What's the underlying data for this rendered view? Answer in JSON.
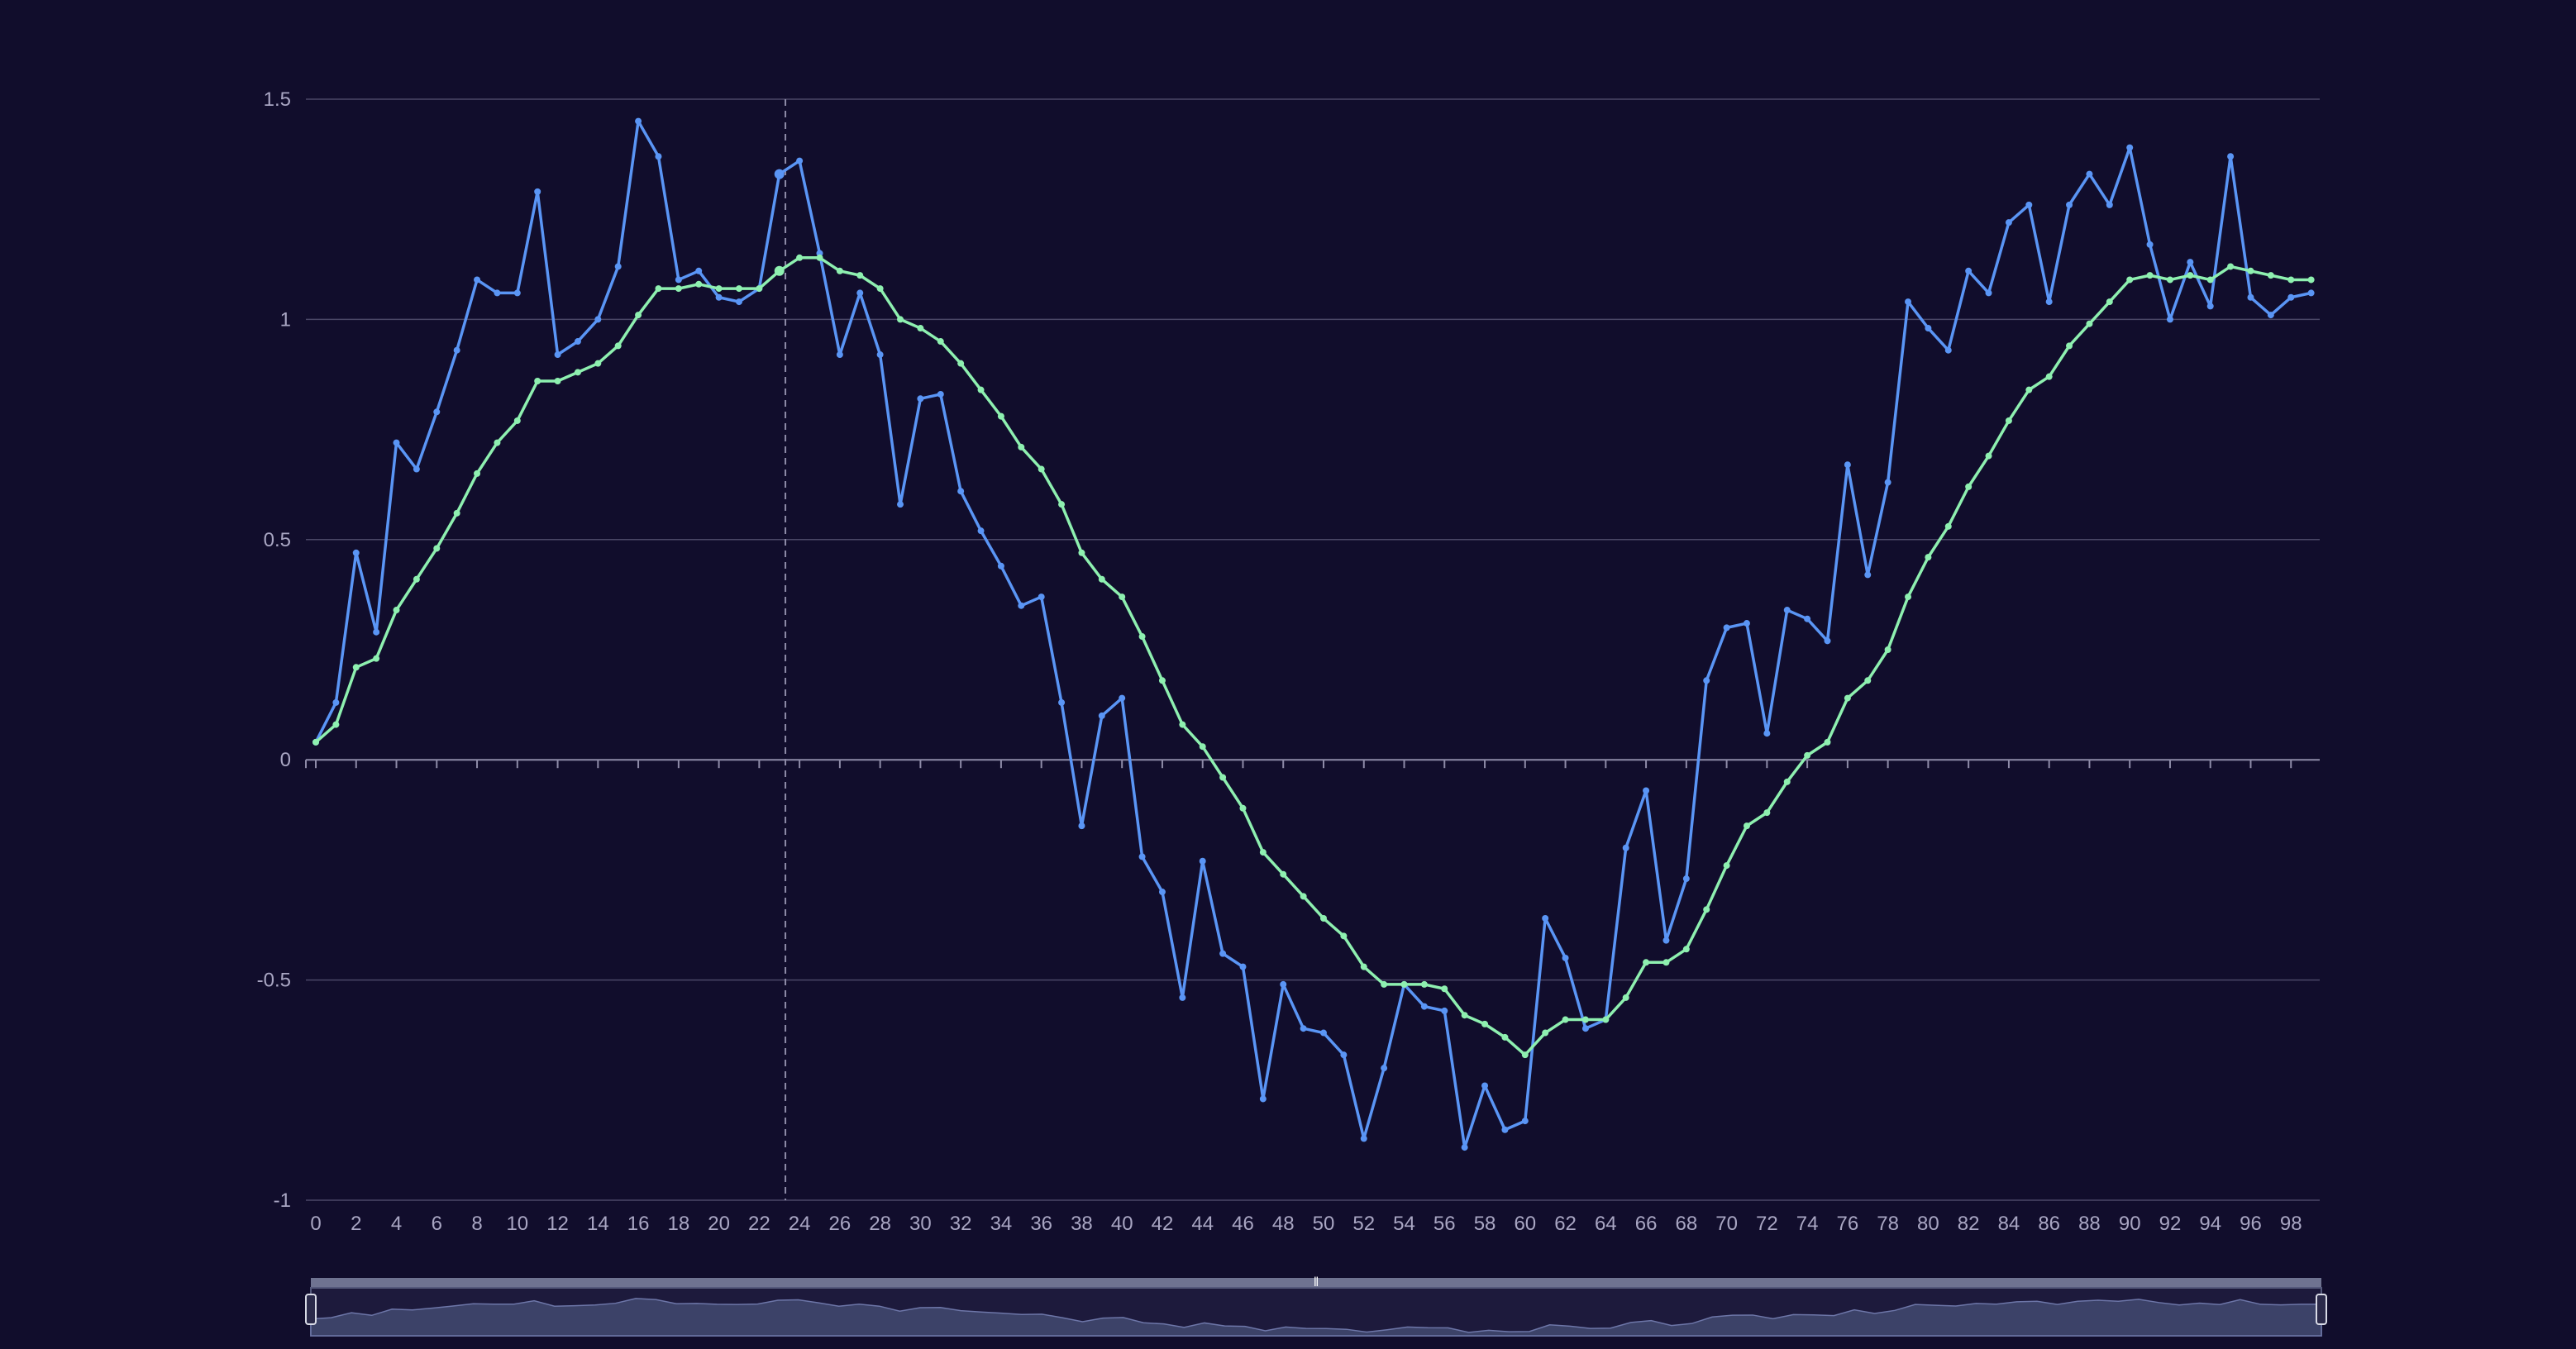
{
  "colors": {
    "background": "#110d2c",
    "grid": "#4a4766",
    "axis": "#8e8ba8",
    "label": "#a9a6c3",
    "crosshair": "#8e8ba8",
    "zoom_fill": "#3c4268",
    "zoom_border": "#55597c",
    "zoom_handle": "#d9dbe6"
  },
  "chart_data": {
    "type": "line",
    "title": "",
    "xlabel": "",
    "ylabel": "",
    "grid": true,
    "legend": "none",
    "xlim": [
      0,
      99
    ],
    "ylim": [
      -1,
      1.5
    ],
    "x_ticks": [
      "0",
      "2",
      "4",
      "6",
      "8",
      "10",
      "12",
      "14",
      "16",
      "18",
      "20",
      "22",
      "24",
      "26",
      "28",
      "30",
      "32",
      "34",
      "36",
      "38",
      "40",
      "42",
      "44",
      "46",
      "48",
      "50",
      "52",
      "54",
      "56",
      "58",
      "60",
      "62",
      "64",
      "66",
      "68",
      "70",
      "72",
      "74",
      "76",
      "78",
      "80",
      "82",
      "84",
      "86",
      "88",
      "90",
      "92",
      "94",
      "96",
      "98"
    ],
    "y_ticks": [
      "1.5",
      "1",
      "0.5",
      "0",
      "-0.5",
      "-1"
    ],
    "crosshair_x": 23.3,
    "series": [
      {
        "color": "#5a95f5",
        "values": [
          0.04,
          0.13,
          0.47,
          0.29,
          0.72,
          0.66,
          0.79,
          0.93,
          1.09,
          1.06,
          1.06,
          1.29,
          0.92,
          0.95,
          1.0,
          1.12,
          1.45,
          1.37,
          1.09,
          1.11,
          1.05,
          1.04,
          1.07,
          1.33,
          1.36,
          1.15,
          0.92,
          1.06,
          0.92,
          0.58,
          0.82,
          0.83,
          0.61,
          0.52,
          0.44,
          0.35,
          0.37,
          0.13,
          -0.15,
          0.1,
          0.14,
          -0.22,
          -0.3,
          -0.54,
          -0.23,
          -0.44,
          -0.47,
          -0.77,
          -0.51,
          -0.61,
          -0.62,
          -0.67,
          -0.86,
          -0.7,
          -0.51,
          -0.56,
          -0.57,
          -0.88,
          -0.74,
          -0.84,
          -0.82,
          -0.36,
          -0.45,
          -0.61,
          -0.59,
          -0.2,
          -0.07,
          -0.41,
          -0.27,
          0.18,
          0.3,
          0.31,
          0.06,
          0.34,
          0.32,
          0.27,
          0.67,
          0.42,
          0.63,
          1.04,
          0.98,
          0.93,
          1.11,
          1.06,
          1.22,
          1.26,
          1.04,
          1.26,
          1.33,
          1.26,
          1.39,
          1.17,
          1.0,
          1.13,
          1.03,
          1.37,
          1.05,
          1.01,
          1.05,
          1.06
        ]
      },
      {
        "color": "#8ef0b0",
        "values": [
          0.04,
          0.08,
          0.21,
          0.23,
          0.34,
          0.41,
          0.48,
          0.56,
          0.65,
          0.72,
          0.77,
          0.86,
          0.86,
          0.88,
          0.9,
          0.94,
          1.01,
          1.07,
          1.07,
          1.08,
          1.07,
          1.07,
          1.07,
          1.11,
          1.14,
          1.14,
          1.11,
          1.1,
          1.07,
          1.0,
          0.98,
          0.95,
          0.9,
          0.84,
          0.78,
          0.71,
          0.66,
          0.58,
          0.47,
          0.41,
          0.37,
          0.28,
          0.18,
          0.08,
          0.03,
          -0.04,
          -0.11,
          -0.21,
          -0.26,
          -0.31,
          -0.36,
          -0.4,
          -0.47,
          -0.51,
          -0.51,
          -0.51,
          -0.52,
          -0.58,
          -0.6,
          -0.63,
          -0.67,
          -0.62,
          -0.59,
          -0.59,
          -0.59,
          -0.54,
          -0.46,
          -0.46,
          -0.43,
          -0.34,
          -0.24,
          -0.15,
          -0.12,
          -0.05,
          0.01,
          0.04,
          0.14,
          0.18,
          0.25,
          0.37,
          0.46,
          0.53,
          0.62,
          0.69,
          0.77,
          0.84,
          0.87,
          0.94,
          0.99,
          1.04,
          1.09,
          1.1,
          1.09,
          1.1,
          1.09,
          1.12,
          1.11,
          1.1,
          1.09,
          1.09
        ]
      }
    ]
  },
  "zoom_slider": {
    "range": [
      0,
      100
    ]
  }
}
